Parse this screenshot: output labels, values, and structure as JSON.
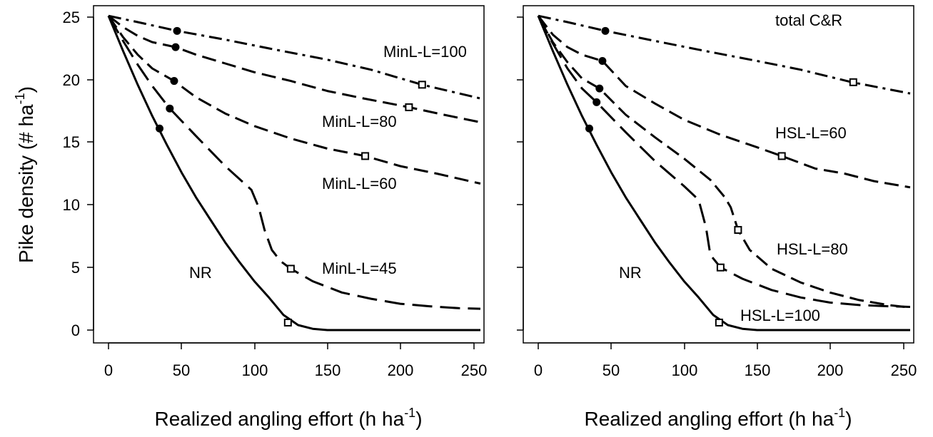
{
  "chart_data": [
    {
      "type": "line",
      "ylabel": "Pike density (# ha",
      "ylabel_sup": "-1",
      "ylabel_close": ")",
      "xlabel": "Realized angling effort (h ha",
      "xlabel_sup": "-1",
      "xlabel_close": ")",
      "xlim": [
        0,
        255
      ],
      "ylim": [
        0,
        25
      ],
      "xticks": [
        "0",
        "50",
        "100",
        "150",
        "200",
        "250"
      ],
      "yticks": [
        "0",
        "5",
        "10",
        "15",
        "20",
        "25"
      ],
      "grid": false,
      "series": [
        {
          "name": "NR",
          "style": "solid",
          "x": [
            0,
            10,
            20,
            30,
            40,
            50,
            60,
            70,
            80,
            90,
            100,
            110,
            120,
            130,
            140,
            150,
            160,
            200,
            255
          ],
          "y": [
            25.1,
            22.3,
            19.6,
            17.1,
            14.8,
            12.6,
            10.6,
            8.8,
            7.0,
            5.4,
            3.9,
            2.6,
            1.2,
            0.4,
            0.1,
            0.0,
            0.0,
            0.0,
            0.0
          ],
          "filled_circle": [
            35,
            16.1
          ],
          "open_square": [
            123,
            0.6
          ]
        },
        {
          "name": "MinL-L=45",
          "style": "longdash",
          "x": [
            0,
            10,
            20,
            30,
            42,
            60,
            80,
            98,
            103,
            107,
            112,
            118,
            125,
            140,
            160,
            180,
            200,
            220,
            240,
            255
          ],
          "y": [
            25.1,
            23.1,
            21.2,
            19.5,
            17.7,
            15.5,
            13.1,
            11.2,
            9.8,
            8.0,
            6.4,
            5.5,
            4.9,
            3.9,
            3.0,
            2.5,
            2.1,
            1.9,
            1.75,
            1.7
          ],
          "filled_circle": [
            42,
            17.7
          ],
          "open_square": [
            125,
            4.9
          ]
        },
        {
          "name": "MinL-L=60",
          "style": "dash",
          "x": [
            0,
            10,
            20,
            30,
            45,
            60,
            80,
            100,
            125,
            150,
            176,
            200,
            225,
            255
          ],
          "y": [
            25.1,
            23.4,
            22.0,
            20.9,
            19.9,
            18.6,
            17.3,
            16.3,
            15.3,
            14.5,
            13.9,
            13.1,
            12.5,
            11.7
          ],
          "filled_circle": [
            45,
            19.9
          ],
          "open_square": [
            176,
            13.9
          ]
        },
        {
          "name": "MinL-L=80",
          "style": "dash",
          "x": [
            0,
            10,
            20,
            30,
            46,
            60,
            80,
            100,
            125,
            150,
            175,
            206,
            230,
            255
          ],
          "y": [
            25.1,
            24.2,
            23.5,
            23.0,
            22.6,
            22.0,
            21.3,
            20.6,
            19.9,
            19.1,
            18.5,
            17.8,
            17.2,
            16.6
          ],
          "filled_circle": [
            46,
            22.6
          ],
          "open_square": [
            206,
            17.8
          ]
        },
        {
          "name": "MinL-L=100",
          "style": "dashdot",
          "x": [
            0,
            20,
            47,
            80,
            110,
            150,
            180,
            215,
            255
          ],
          "y": [
            25.1,
            24.6,
            23.9,
            23.2,
            22.5,
            21.6,
            20.8,
            19.6,
            18.5
          ],
          "filled_circle": [
            47,
            23.9
          ],
          "open_square": [
            215,
            19.6
          ]
        }
      ],
      "annotations": [
        "MinL-L=100",
        "MinL-L=80",
        "MinL-L=60",
        "MinL-L=45",
        "NR"
      ]
    },
    {
      "type": "line",
      "xlabel": "Realized angling effort (h ha",
      "xlabel_sup": "-1",
      "xlabel_close": ")",
      "xlim": [
        0,
        255
      ],
      "ylim": [
        0,
        25
      ],
      "xticks": [
        "0",
        "50",
        "100",
        "150",
        "200",
        "250"
      ],
      "yticks": [
        "",
        "",
        "",
        "",
        "",
        ""
      ],
      "grid": false,
      "series": [
        {
          "name": "NR",
          "style": "solid",
          "x": [
            0,
            10,
            20,
            30,
            40,
            50,
            60,
            70,
            80,
            90,
            100,
            110,
            120,
            130,
            140,
            150,
            160,
            200,
            255
          ],
          "y": [
            25.1,
            22.3,
            19.6,
            17.1,
            14.8,
            12.6,
            10.6,
            8.8,
            7.0,
            5.4,
            3.9,
            2.6,
            1.2,
            0.4,
            0.1,
            0.0,
            0.0,
            0.0,
            0.0
          ],
          "filled_circle": [
            35,
            16.1
          ],
          "open_square": [
            124,
            0.6
          ]
        },
        {
          "name": "HSL-L=100",
          "style": "longdash",
          "x": [
            0,
            10,
            20,
            30,
            40,
            60,
            80,
            100,
            110,
            115,
            118,
            125,
            140,
            160,
            180,
            200,
            220,
            240,
            255
          ],
          "y": [
            25.1,
            22.9,
            20.9,
            19.3,
            18.2,
            15.8,
            13.5,
            11.5,
            10.4,
            8.2,
            6.0,
            5.0,
            4.1,
            3.2,
            2.6,
            2.2,
            2.0,
            1.9,
            1.85
          ],
          "filled_circle": [
            40,
            18.2
          ],
          "open_square": [
            125,
            5.0
          ]
        },
        {
          "name": "HSL-L=80",
          "style": "dash",
          "x": [
            0,
            10,
            20,
            30,
            42,
            60,
            80,
            100,
            118,
            128,
            132,
            137,
            145,
            160,
            180,
            200,
            220,
            240,
            255
          ],
          "y": [
            25.1,
            23.0,
            21.4,
            20.1,
            19.3,
            17.2,
            15.4,
            13.7,
            12.0,
            10.6,
            9.8,
            8.0,
            6.4,
            4.9,
            3.8,
            3.0,
            2.4,
            2.0,
            1.8
          ],
          "filled_circle": [
            42,
            19.3
          ],
          "open_square": [
            137,
            8.0
          ]
        },
        {
          "name": "HSL-L=60",
          "style": "dash",
          "x": [
            0,
            10,
            20,
            30,
            44,
            60,
            80,
            100,
            125,
            150,
            167,
            190,
            210,
            230,
            255
          ],
          "y": [
            25.1,
            23.6,
            22.6,
            22.0,
            21.5,
            19.5,
            18.1,
            16.8,
            15.6,
            14.6,
            13.9,
            12.9,
            12.5,
            11.9,
            11.4
          ],
          "filled_circle": [
            44,
            21.5
          ],
          "open_square": [
            167,
            13.9
          ]
        },
        {
          "name": "total C&R",
          "style": "dashdot",
          "x": [
            0,
            20,
            46,
            80,
            110,
            150,
            180,
            215,
            255
          ],
          "y": [
            25.1,
            24.6,
            23.9,
            23.1,
            22.4,
            21.5,
            20.8,
            19.8,
            18.9
          ],
          "filled_circle": [
            46,
            23.9
          ],
          "open_square": [
            216,
            19.8
          ]
        }
      ],
      "annotations": [
        "total C&R",
        "HSL-L=60",
        "HSL-L=80",
        "HSL-L=100",
        "NR"
      ]
    }
  ]
}
